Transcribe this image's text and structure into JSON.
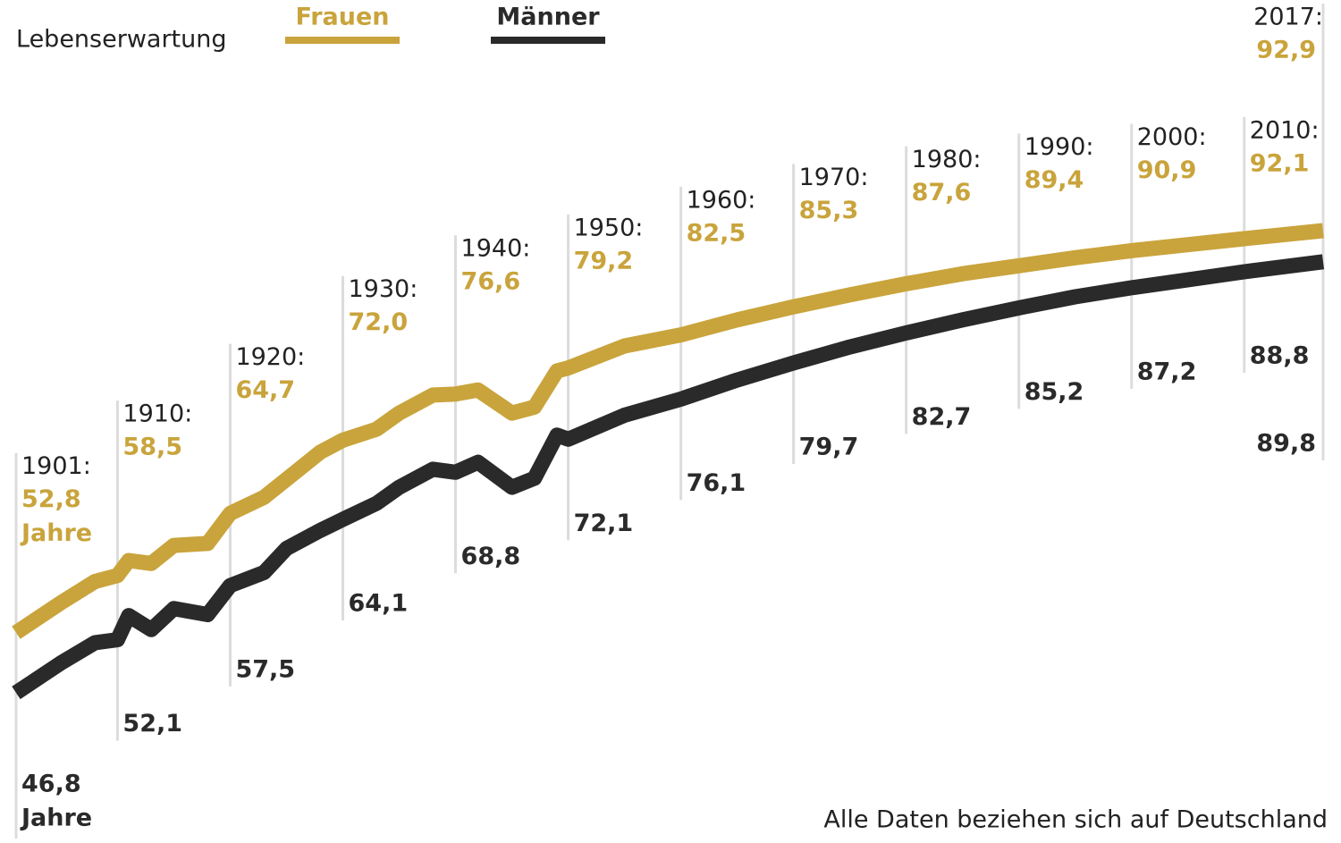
{
  "chart_data": {
    "type": "line",
    "title": "Lebenserwartung",
    "note": "Alle Daten beziehen sich auf Deutschland",
    "unit_label": "Jahre",
    "x": [
      1901,
      1905,
      1908,
      1910,
      1911,
      1913,
      1915,
      1918,
      1920,
      1923,
      1925,
      1928,
      1930,
      1933,
      1935,
      1938,
      1940,
      1942,
      1945,
      1947,
      1949,
      1950,
      1955,
      1960,
      1965,
      1970,
      1975,
      1980,
      1985,
      1990,
      1995,
      2000,
      2005,
      2010,
      2017
    ],
    "xticks": [
      {
        "value": 1901,
        "label": "1901:"
      },
      {
        "value": 1910,
        "label": "1910:"
      },
      {
        "value": 1920,
        "label": "1920:"
      },
      {
        "value": 1930,
        "label": "1930:"
      },
      {
        "value": 1940,
        "label": "1940:"
      },
      {
        "value": 1950,
        "label": "1950:"
      },
      {
        "value": 1960,
        "label": "1960:"
      },
      {
        "value": 1970,
        "label": "1970:"
      },
      {
        "value": 1980,
        "label": "1980:"
      },
      {
        "value": 1990,
        "label": "1990:"
      },
      {
        "value": 2000,
        "label": "2000:"
      },
      {
        "value": 2010,
        "label": "2010:"
      },
      {
        "value": 2017,
        "label": "2017:"
      }
    ],
    "series": [
      {
        "name": "Frauen",
        "color": "#c9a43c",
        "values": [
          52.8,
          55.8,
          57.9,
          58.5,
          60.0,
          59.7,
          61.5,
          61.7,
          64.7,
          66.3,
          68.1,
          70.8,
          72.0,
          73.1,
          74.7,
          76.5,
          76.6,
          77.0,
          74.7,
          75.3,
          78.9,
          79.2,
          81.4,
          82.5,
          84.0,
          85.3,
          86.5,
          87.6,
          88.6,
          89.4,
          90.2,
          90.9,
          91.5,
          92.1,
          92.9
        ],
        "value_labels": [
          "52,8",
          null,
          null,
          "58,5",
          null,
          null,
          null,
          null,
          "64,7",
          null,
          null,
          null,
          "72,0",
          null,
          null,
          null,
          "76,6",
          null,
          null,
          null,
          null,
          "79,2",
          null,
          "82,5",
          null,
          "85,3",
          null,
          "87,6",
          null,
          "89,4",
          null,
          "90,9",
          null,
          "92,1",
          "92,9"
        ]
      },
      {
        "name": "Männer",
        "color": "#2a2a2a",
        "values": [
          46.8,
          49.8,
          51.8,
          52.1,
          54.5,
          53.1,
          55.2,
          54.6,
          57.5,
          58.8,
          61.2,
          63.0,
          64.1,
          65.7,
          67.3,
          69.1,
          68.8,
          69.8,
          67.3,
          68.2,
          72.5,
          72.1,
          74.5,
          76.1,
          78.0,
          79.7,
          81.3,
          82.7,
          84.0,
          85.2,
          86.3,
          87.2,
          88.0,
          88.8,
          89.8
        ],
        "value_labels": [
          "46,8",
          null,
          null,
          "52,1",
          null,
          null,
          null,
          null,
          "57,5",
          null,
          null,
          null,
          "64,1",
          null,
          null,
          null,
          "68,8",
          null,
          null,
          null,
          null,
          "72,1",
          null,
          "76,1",
          null,
          "79,7",
          null,
          "82,7",
          null,
          "85,2",
          null,
          "87,2",
          null,
          "88,8",
          "89,8"
        ]
      }
    ]
  }
}
